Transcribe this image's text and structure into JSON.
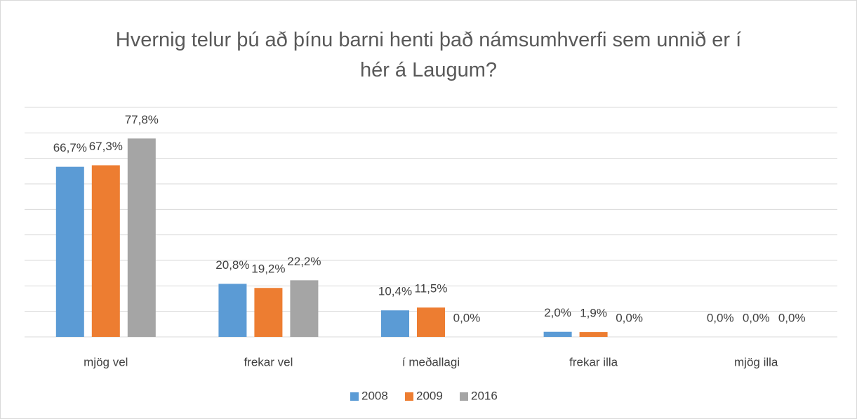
{
  "chart_data": {
    "type": "bar",
    "title": "Hvernig telur þú að þínu barni henti það námsumhverfi sem unnið er í hér á Laugum?",
    "categories": [
      "mjög vel",
      "frekar vel",
      "í meðallagi",
      "frekar illa",
      "mjög illa"
    ],
    "series": [
      {
        "name": "2008",
        "color": "#5b9bd5",
        "values": [
          66.7,
          20.8,
          10.4,
          2.0,
          0.0
        ],
        "value_labels": [
          "66,7%",
          "20,8%",
          "10,4%",
          "2,0%",
          "0,0%"
        ]
      },
      {
        "name": "2009",
        "color": "#ed7d31",
        "values": [
          67.3,
          19.2,
          11.5,
          1.9,
          0.0
        ],
        "value_labels": [
          "67,3%",
          "19,2%",
          "11,5%",
          "1,9%",
          "0,0%"
        ]
      },
      {
        "name": "2016",
        "color": "#a5a5a5",
        "values": [
          77.8,
          22.2,
          0.0,
          0.0,
          0.0
        ],
        "value_labels": [
          "77,8%",
          "22,2%",
          "0,0%",
          "0,0%",
          "0,0%"
        ]
      }
    ],
    "ylim": [
      0,
      90
    ],
    "yticks": [
      0,
      10,
      20,
      30,
      40,
      50,
      60,
      70,
      80,
      90
    ],
    "grid": true,
    "legend": "bottom"
  }
}
